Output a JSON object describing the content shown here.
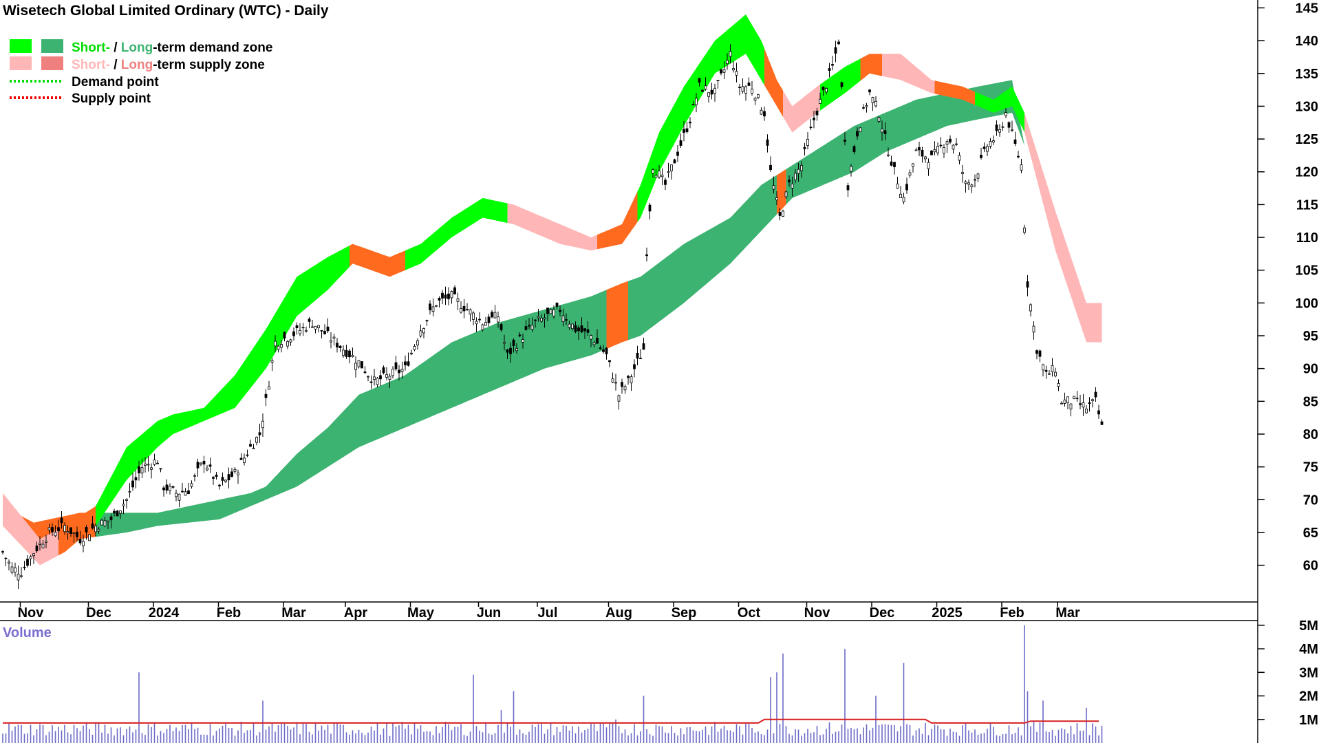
{
  "chart_data": {
    "type": "candlestick",
    "title": "Wisetech Global Limited Ordinary (WTC) - Daily",
    "legend": [
      {
        "short_label": "Short-",
        "sep": " / ",
        "long_label": "Long",
        "rest": "-term demand zone",
        "short_color": "#00ff00",
        "long_color": "#3cb371",
        "kind": "box"
      },
      {
        "short_label": "Short-",
        "sep": " / ",
        "long_label": "Long",
        "rest": "-term supply zone",
        "short_color": "#ffb6b6",
        "long_color": "#f08080",
        "kind": "box"
      },
      {
        "label": "Demand point",
        "color": "#00dd00",
        "kind": "dotted"
      },
      {
        "label": "Supply point",
        "color": "#ee0000",
        "kind": "dotted"
      }
    ],
    "price_ticks": [
      "145",
      "140",
      "135",
      "130",
      "125",
      "120",
      "115",
      "110",
      "105",
      "100",
      "95",
      "90",
      "85",
      "80",
      "75",
      "70",
      "65",
      "60"
    ],
    "price_tick_values": [
      145,
      140,
      135,
      130,
      125,
      120,
      115,
      110,
      105,
      100,
      95,
      90,
      85,
      80,
      75,
      70,
      65,
      60
    ],
    "ylim": [
      54.4,
      146.2
    ],
    "x_labels": [
      "Nov",
      "Dec",
      "2024",
      "Feb",
      "Mar",
      "Apr",
      "May",
      "Jun",
      "Jul",
      "Aug",
      "Sep",
      "Oct",
      "Nov",
      "Dec",
      "2025",
      "Feb",
      "Mar"
    ],
    "x_label_index": [
      9,
      31,
      52,
      73,
      94,
      114,
      135,
      157,
      176,
      199,
      220,
      241,
      263,
      284,
      305,
      326,
      344
    ],
    "total_bars": 364,
    "price_anchors": [
      [
        0,
        62
      ],
      [
        3,
        59.5
      ],
      [
        6,
        59
      ],
      [
        10,
        62
      ],
      [
        15,
        65
      ],
      [
        20,
        66
      ],
      [
        25,
        64
      ],
      [
        30,
        66
      ],
      [
        35,
        67
      ],
      [
        40,
        70
      ],
      [
        45,
        75
      ],
      [
        50,
        76
      ],
      [
        52,
        72
      ],
      [
        56,
        71
      ],
      [
        60,
        71.5
      ],
      [
        65,
        76
      ],
      [
        70,
        72
      ],
      [
        75,
        74
      ],
      [
        80,
        78
      ],
      [
        83,
        80
      ],
      [
        85,
        85
      ],
      [
        88,
        94
      ],
      [
        93,
        95
      ],
      [
        100,
        97
      ],
      [
        105,
        95
      ],
      [
        110,
        93
      ],
      [
        115,
        91
      ],
      [
        120,
        88
      ],
      [
        125,
        89
      ],
      [
        130,
        90
      ],
      [
        135,
        96
      ],
      [
        140,
        100
      ],
      [
        145,
        101
      ],
      [
        150,
        99
      ],
      [
        155,
        97
      ],
      [
        160,
        98
      ],
      [
        163,
        92
      ],
      [
        168,
        95
      ],
      [
        172,
        97
      ],
      [
        176,
        98
      ],
      [
        180,
        99
      ],
      [
        185,
        96
      ],
      [
        190,
        95
      ],
      [
        195,
        92
      ],
      [
        199,
        86
      ],
      [
        202,
        88
      ],
      [
        205,
        91
      ],
      [
        207,
        93
      ],
      [
        208,
        108
      ],
      [
        210,
        121
      ],
      [
        214,
        118
      ],
      [
        218,
        123
      ],
      [
        222,
        128
      ],
      [
        225,
        133
      ],
      [
        230,
        132
      ],
      [
        235,
        138
      ],
      [
        238,
        133
      ],
      [
        242,
        133
      ],
      [
        246,
        129
      ],
      [
        248,
        120
      ],
      [
        251,
        113
      ],
      [
        254,
        118
      ],
      [
        258,
        121
      ],
      [
        262,
        128
      ],
      [
        265,
        132
      ],
      [
        268,
        136
      ],
      [
        270,
        140
      ],
      [
        273,
        118
      ],
      [
        276,
        126
      ],
      [
        280,
        132
      ],
      [
        283,
        129
      ],
      [
        285,
        125
      ],
      [
        288,
        120
      ],
      [
        291,
        116
      ],
      [
        295,
        123
      ],
      [
        300,
        122
      ],
      [
        305,
        125
      ],
      [
        308,
        124
      ],
      [
        311,
        118
      ],
      [
        314,
        119
      ],
      [
        318,
        124
      ],
      [
        322,
        126
      ],
      [
        324,
        129
      ],
      [
        327,
        124
      ],
      [
        329,
        121
      ],
      [
        331,
        103
      ],
      [
        334,
        93
      ],
      [
        337,
        89
      ],
      [
        340,
        90
      ],
      [
        342,
        85
      ],
      [
        346,
        85
      ],
      [
        350,
        84
      ],
      [
        353,
        85
      ],
      [
        355,
        81
      ]
    ],
    "long_zone_top": [
      [
        0,
        69
      ],
      [
        10,
        66.5
      ],
      [
        25,
        68
      ],
      [
        40,
        68
      ],
      [
        50,
        68
      ],
      [
        70,
        70
      ],
      [
        80,
        71
      ],
      [
        85,
        72
      ],
      [
        95,
        77
      ],
      [
        105,
        81
      ],
      [
        115,
        86
      ],
      [
        130,
        89
      ],
      [
        145,
        94
      ],
      [
        160,
        97
      ],
      [
        175,
        99
      ],
      [
        190,
        101
      ],
      [
        200,
        103
      ],
      [
        206,
        104
      ],
      [
        220,
        109
      ],
      [
        235,
        113
      ],
      [
        245,
        118
      ],
      [
        255,
        121
      ],
      [
        265,
        124
      ],
      [
        275,
        127
      ],
      [
        285,
        129
      ],
      [
        295,
        131
      ],
      [
        305,
        132
      ],
      [
        315,
        133
      ],
      [
        326,
        134
      ],
      [
        330,
        124
      ]
    ],
    "long_zone_bottom": [
      [
        0,
        66
      ],
      [
        10,
        64
      ],
      [
        25,
        64
      ],
      [
        40,
        65
      ],
      [
        50,
        66
      ],
      [
        70,
        67
      ],
      [
        80,
        69
      ],
      [
        85,
        70
      ],
      [
        95,
        72
      ],
      [
        105,
        75
      ],
      [
        115,
        78
      ],
      [
        130,
        81
      ],
      [
        145,
        84
      ],
      [
        160,
        87
      ],
      [
        175,
        90
      ],
      [
        190,
        92
      ],
      [
        200,
        94
      ],
      [
        206,
        95
      ],
      [
        220,
        100
      ],
      [
        235,
        106
      ],
      [
        245,
        111
      ],
      [
        255,
        116
      ],
      [
        265,
        118
      ],
      [
        275,
        120
      ],
      [
        285,
        123
      ],
      [
        295,
        125
      ],
      [
        305,
        127
      ],
      [
        315,
        128
      ],
      [
        326,
        129
      ],
      [
        330,
        124
      ]
    ],
    "short_zone_top": [
      [
        0,
        71
      ],
      [
        12,
        64
      ],
      [
        20,
        66
      ],
      [
        30,
        69
      ],
      [
        40,
        78
      ],
      [
        50,
        82
      ],
      [
        55,
        83
      ],
      [
        65,
        84
      ],
      [
        75,
        89
      ],
      [
        85,
        96
      ],
      [
        95,
        104
      ],
      [
        105,
        107
      ],
      [
        113,
        109
      ],
      [
        125,
        107
      ],
      [
        135,
        109
      ],
      [
        145,
        113
      ],
      [
        155,
        116
      ],
      [
        165,
        115
      ],
      [
        180,
        112
      ],
      [
        190,
        110
      ],
      [
        200,
        112
      ],
      [
        206,
        118
      ],
      [
        212,
        126
      ],
      [
        220,
        133
      ],
      [
        230,
        140
      ],
      [
        240,
        144
      ],
      [
        245,
        140
      ],
      [
        250,
        134
      ],
      [
        255,
        130
      ],
      [
        263,
        133
      ],
      [
        272,
        136
      ],
      [
        280,
        138
      ],
      [
        290,
        138
      ],
      [
        300,
        134
      ],
      [
        310,
        133
      ],
      [
        320,
        131
      ],
      [
        326,
        133
      ],
      [
        330,
        129
      ],
      [
        340,
        114
      ],
      [
        350,
        100
      ]
    ],
    "short_zone_bottom": [
      [
        0,
        66
      ],
      [
        12,
        60
      ],
      [
        20,
        62
      ],
      [
        30,
        66
      ],
      [
        40,
        73
      ],
      [
        50,
        78
      ],
      [
        55,
        80
      ],
      [
        65,
        82
      ],
      [
        75,
        84
      ],
      [
        85,
        90
      ],
      [
        95,
        98
      ],
      [
        105,
        102
      ],
      [
        113,
        106
      ],
      [
        125,
        104
      ],
      [
        135,
        106
      ],
      [
        145,
        110
      ],
      [
        155,
        113
      ],
      [
        165,
        112
      ],
      [
        180,
        109
      ],
      [
        190,
        108
      ],
      [
        200,
        109
      ],
      [
        206,
        113
      ],
      [
        212,
        120
      ],
      [
        220,
        127
      ],
      [
        230,
        135
      ],
      [
        240,
        138
      ],
      [
        245,
        134
      ],
      [
        250,
        130
      ],
      [
        255,
        126
      ],
      [
        263,
        129
      ],
      [
        272,
        132
      ],
      [
        280,
        135
      ],
      [
        290,
        134
      ],
      [
        300,
        132
      ],
      [
        310,
        131
      ],
      [
        320,
        129
      ],
      [
        326,
        130
      ],
      [
        330,
        126
      ],
      [
        340,
        108
      ],
      [
        350,
        94
      ]
    ],
    "zone_segments": [
      {
        "zone": "long",
        "from": 0,
        "to": 30,
        "color": "#ff6a1f"
      },
      {
        "zone": "long",
        "from": 30,
        "to": 195,
        "color": "#3cb371"
      },
      {
        "zone": "long",
        "from": 195,
        "to": 202,
        "color": "#ff6a1f"
      },
      {
        "zone": "long",
        "from": 202,
        "to": 250,
        "color": "#3cb371"
      },
      {
        "zone": "long",
        "from": 250,
        "to": 253,
        "color": "#ff6a1f"
      },
      {
        "zone": "long",
        "from": 253,
        "to": 330,
        "color": "#3cb371"
      },
      {
        "zone": "long",
        "from": 330,
        "to": 355,
        "color": "#ff6a1f"
      },
      {
        "zone": "short",
        "from": 0,
        "to": 18,
        "color": "#ffb6b6"
      },
      {
        "zone": "short",
        "from": 18,
        "to": 30,
        "color": "#ff6a1f"
      },
      {
        "zone": "short",
        "from": 30,
        "to": 112,
        "color": "#00ff00"
      },
      {
        "zone": "short",
        "from": 112,
        "to": 130,
        "color": "#ff6a1f"
      },
      {
        "zone": "short",
        "from": 130,
        "to": 163,
        "color": "#00ff00"
      },
      {
        "zone": "short",
        "from": 163,
        "to": 192,
        "color": "#ffb6b6"
      },
      {
        "zone": "short",
        "from": 192,
        "to": 205,
        "color": "#ff6a1f"
      },
      {
        "zone": "short",
        "from": 205,
        "to": 246,
        "color": "#00ff00"
      },
      {
        "zone": "short",
        "from": 246,
        "to": 252,
        "color": "#ff6a1f"
      },
      {
        "zone": "short",
        "from": 252,
        "to": 264,
        "color": "#ffb6b6"
      },
      {
        "zone": "short",
        "from": 264,
        "to": 277,
        "color": "#00ff00"
      },
      {
        "zone": "short",
        "from": 277,
        "to": 284,
        "color": "#ff6a1f"
      },
      {
        "zone": "short",
        "from": 284,
        "to": 301,
        "color": "#ffb6b6"
      },
      {
        "zone": "short",
        "from": 301,
        "to": 314,
        "color": "#ff6a1f"
      },
      {
        "zone": "short",
        "from": 314,
        "to": 330,
        "color": "#00ff00"
      },
      {
        "zone": "short",
        "from": 330,
        "to": 355,
        "color": "#ffb6b6"
      }
    ],
    "volume": {
      "title": "Volume",
      "ticks": [
        "5M",
        "4M",
        "3M",
        "2M",
        "1M"
      ],
      "tick_values": [
        5,
        4,
        3,
        2,
        1
      ],
      "ylim": [
        0,
        5.2
      ],
      "unit": "million shares",
      "avg_level": 0.85,
      "spikes": [
        [
          44,
          3.0
        ],
        [
          84,
          1.8
        ],
        [
          152,
          2.9
        ],
        [
          161,
          1.4
        ],
        [
          165,
          2.2
        ],
        [
          198,
          1.0
        ],
        [
          207,
          2.0
        ],
        [
          248,
          2.8
        ],
        [
          250,
          3.0
        ],
        [
          252,
          3.8
        ],
        [
          272,
          4.0
        ],
        [
          282,
          2.0
        ],
        [
          291,
          3.4
        ],
        [
          330,
          5.0
        ],
        [
          331,
          2.2
        ],
        [
          336,
          1.8
        ],
        [
          350,
          1.5
        ]
      ],
      "bar_color": "#6a6ac8",
      "avg_color": "#d81e1e"
    }
  }
}
